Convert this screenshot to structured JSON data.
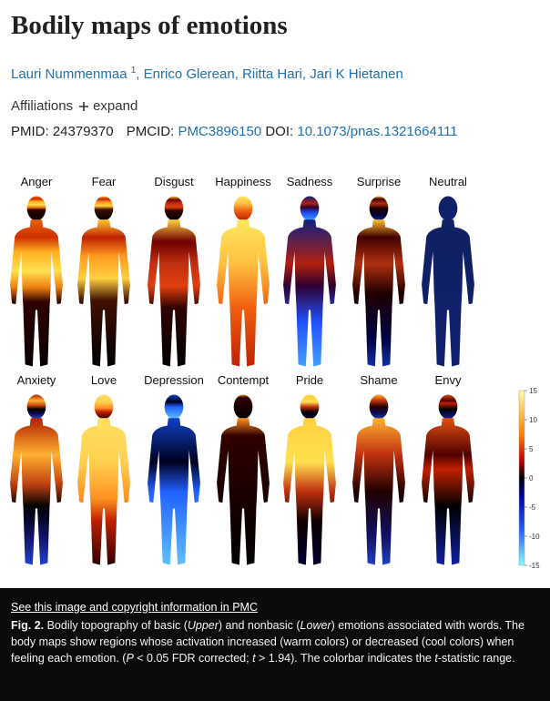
{
  "header": {
    "title": "Bodily maps of emotions",
    "authors": [
      "Lauri Nummenmaa",
      "Enrico Glerean",
      "Riitta Hari",
      "Jari K Hietanen"
    ],
    "author_affiliation": "1",
    "author_separator": ",",
    "affiliations": "Affiliations",
    "expand": "expand",
    "pmid_label": "PMID:",
    "pmid": "24379370",
    "pmcid_label": "PMCID:",
    "pmcid": "PMC3896150",
    "doi_label": "DOI:",
    "doi": "10.1073/pnas.1321664111"
  },
  "figure": {
    "labels": [
      "Anger",
      "Fear",
      "Disgust",
      "Happiness",
      "Sadness",
      "Surprise",
      "Neutral",
      "Anxiety",
      "Love",
      "Depression",
      "Contempt",
      "Pride",
      "Shame",
      "Envy"
    ],
    "colorbar_ticks": [
      15,
      10,
      5,
      0,
      -5,
      -10,
      -15
    ]
  },
  "caption": {
    "link": "See this image and copyright information in PMC",
    "label": "Fig. 2.",
    "segments": [
      " Bodily topography of basic (",
      "Upper",
      ") and nonbasic (",
      "Lower",
      ") emotions associated with words. The body maps show regions whose activation increased (warm colors) or decreased (cool colors) when feeling each emotion. (",
      "P",
      " < 0.05 FDR corrected; ",
      "t",
      " > 1.94). The colorbar indicates the ",
      "t",
      "-statistic range."
    ]
  }
}
